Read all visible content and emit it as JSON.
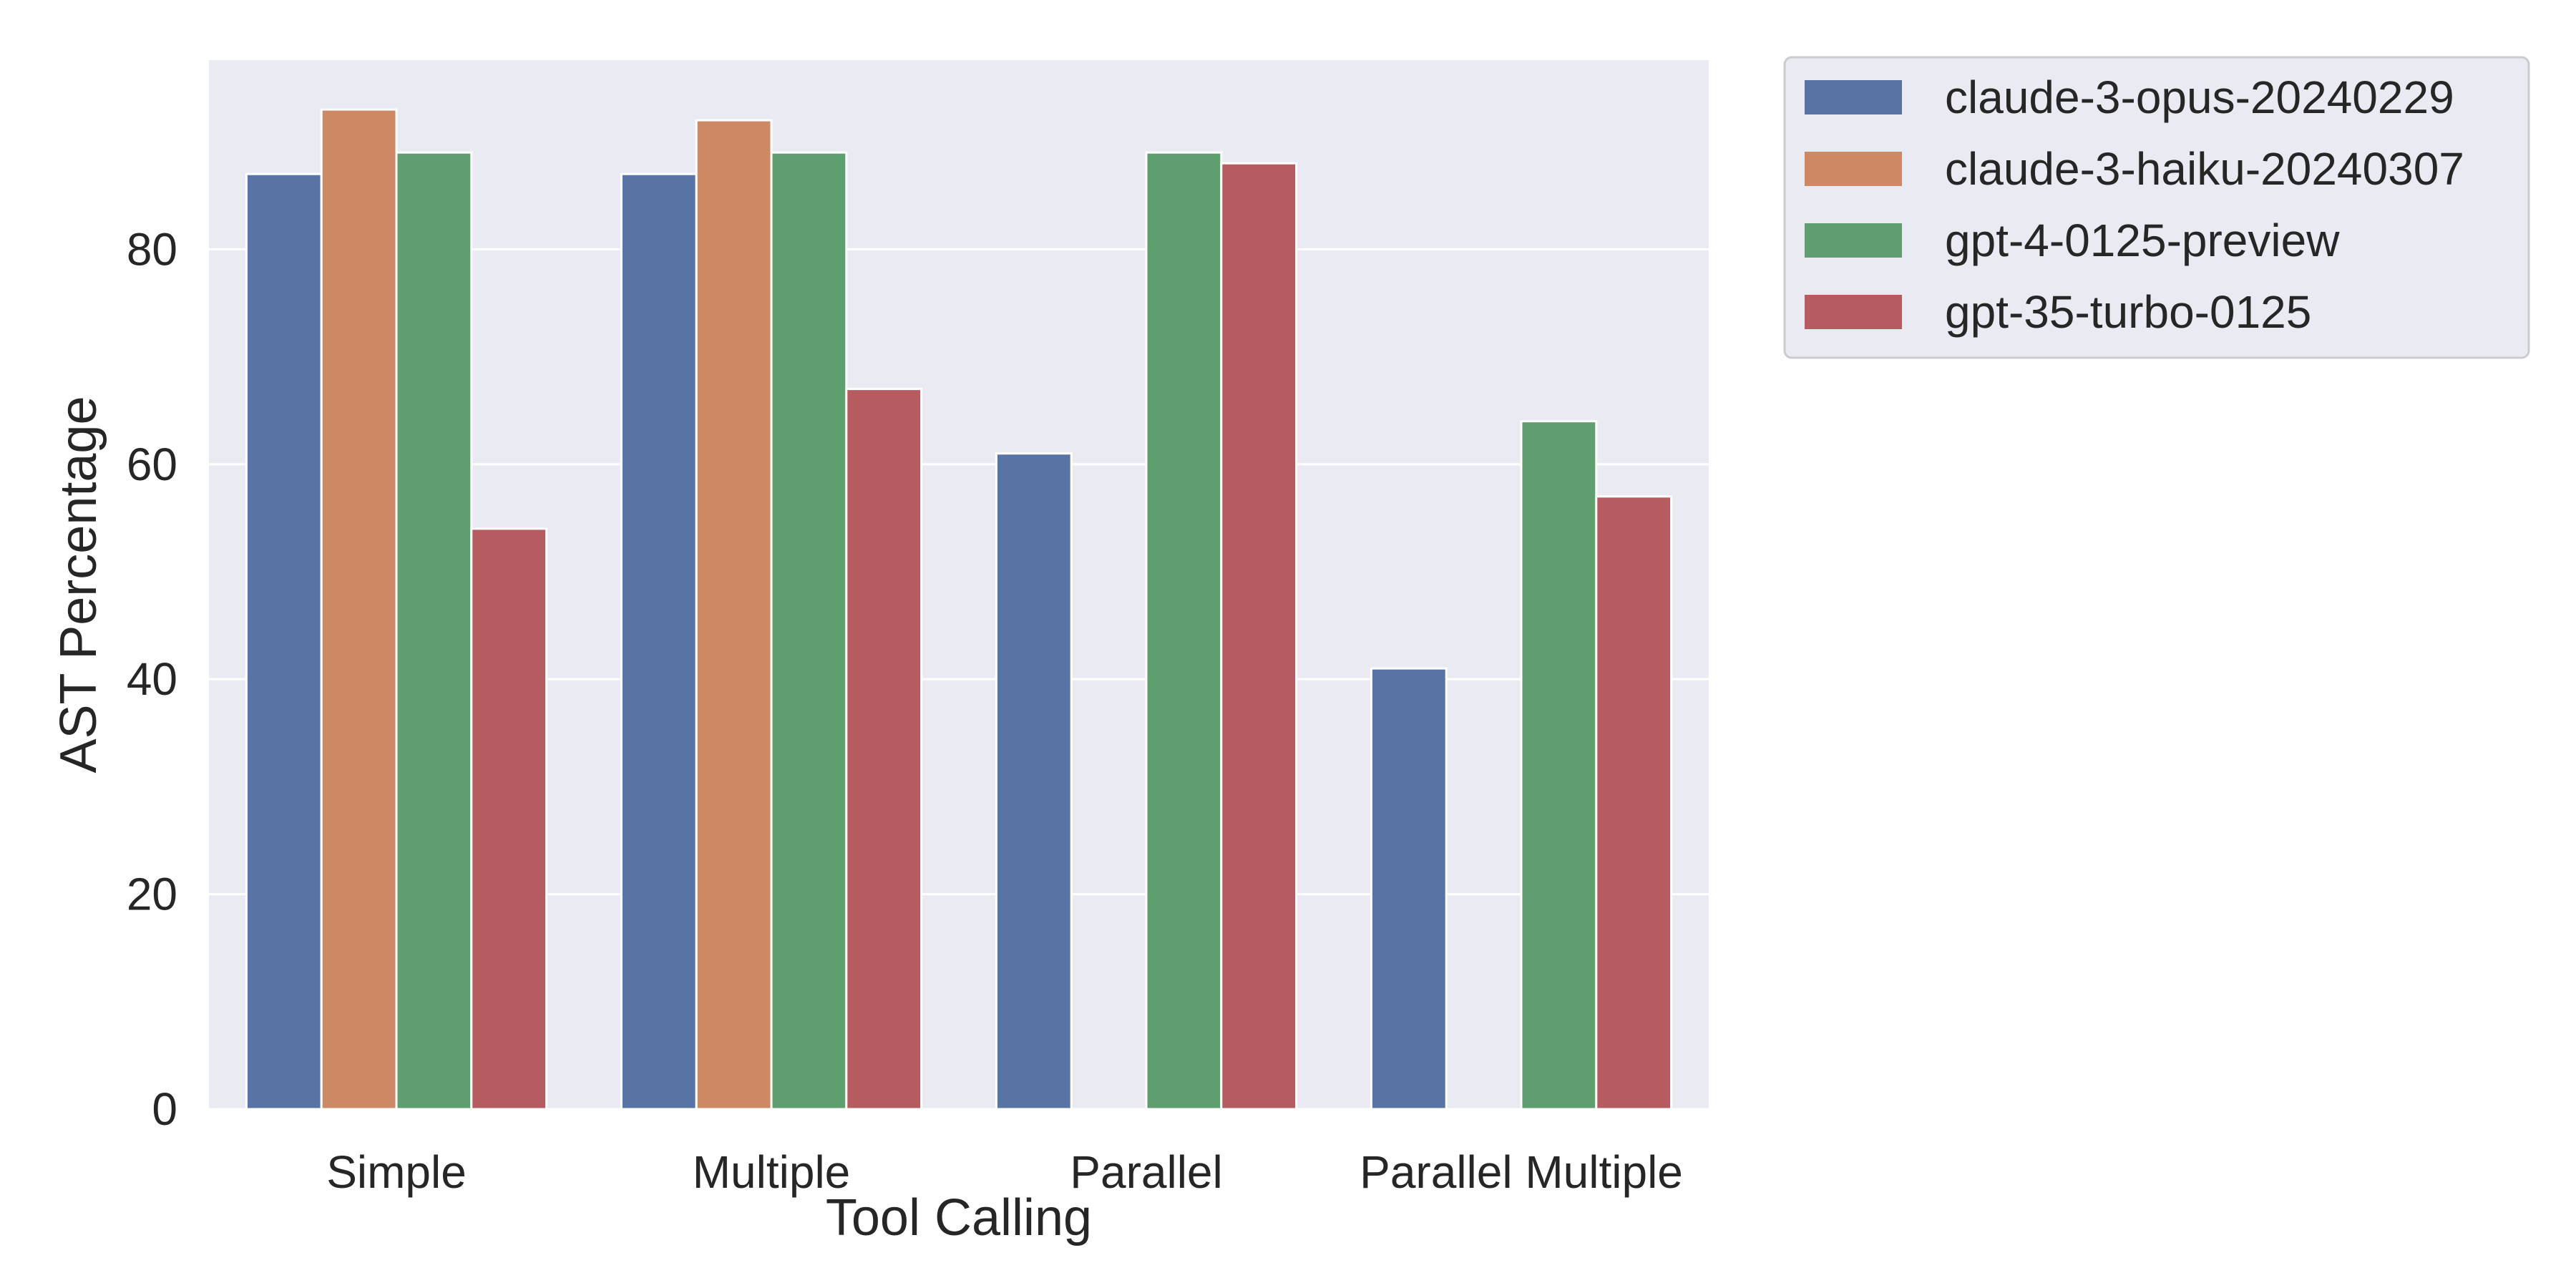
{
  "chart_data": {
    "type": "bar",
    "title": "",
    "xlabel": "Tool Calling",
    "ylabel": "AST Percentage",
    "categories": [
      "Simple",
      "Multiple",
      "Parallel",
      "Parallel Multiple"
    ],
    "series": [
      {
        "name": "claude-3-opus-20240229",
        "color": "#5874A4",
        "values": [
          87,
          87,
          61,
          41
        ]
      },
      {
        "name": "claude-3-haiku-20240307",
        "color": "#CD8963",
        "values": [
          93,
          92,
          0,
          0
        ]
      },
      {
        "name": "gpt-4-0125-preview",
        "color": "#5F9E6E",
        "values": [
          89,
          89,
          89,
          64
        ]
      },
      {
        "name": "gpt-35-turbo-0125",
        "color": "#B65B5F",
        "values": [
          54,
          67,
          88,
          57
        ]
      }
    ],
    "ylim": [
      0,
      97.6
    ],
    "yticks": [
      0,
      20,
      40,
      60,
      80
    ],
    "grid": true,
    "legend": "outside-top-right",
    "plot_background": "#EAEAF2",
    "grid_color": "#FFFFFF"
  }
}
